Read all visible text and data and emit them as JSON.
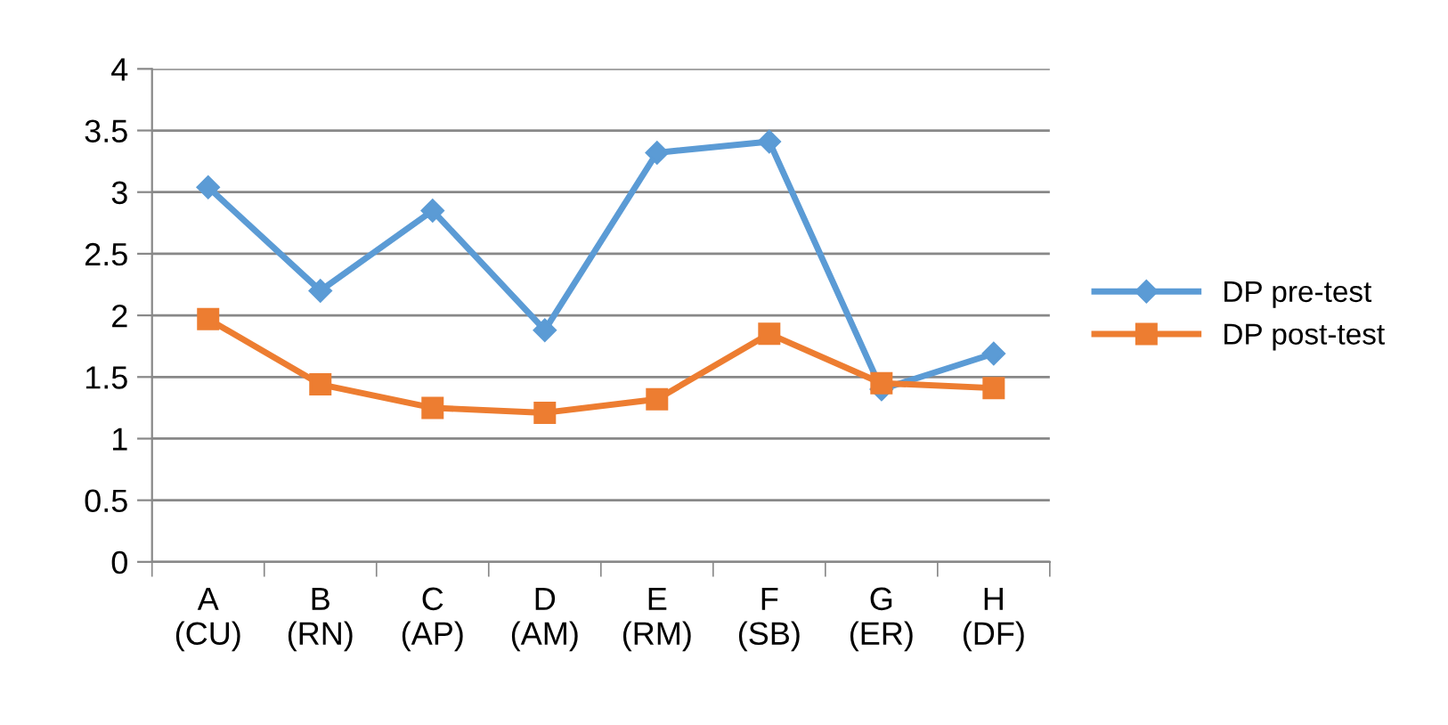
{
  "chart_data": {
    "type": "line",
    "categories": [
      "A\n(CU)",
      "B\n(RN)",
      "C\n(AP)",
      "D\n(AM)",
      "E\n(RM)",
      "F\n(SB)",
      "G\n(ER)",
      "H\n(DF)"
    ],
    "series": [
      {
        "name": "DP pre-test",
        "color": "#5b9bd5",
        "marker": "diamond",
        "values": [
          3.04,
          2.2,
          2.85,
          1.88,
          3.32,
          3.41,
          1.4,
          1.69
        ]
      },
      {
        "name": "DP post-test",
        "color": "#ed7d31",
        "marker": "square",
        "values": [
          1.97,
          1.44,
          1.25,
          1.21,
          1.32,
          1.85,
          1.45,
          1.41
        ]
      }
    ],
    "ylim": [
      0,
      4
    ],
    "yticks": [
      0,
      0.5,
      1,
      1.5,
      2,
      2.5,
      3,
      3.5,
      4
    ],
    "grid": "y",
    "legend": "right",
    "line_style": "solid"
  }
}
